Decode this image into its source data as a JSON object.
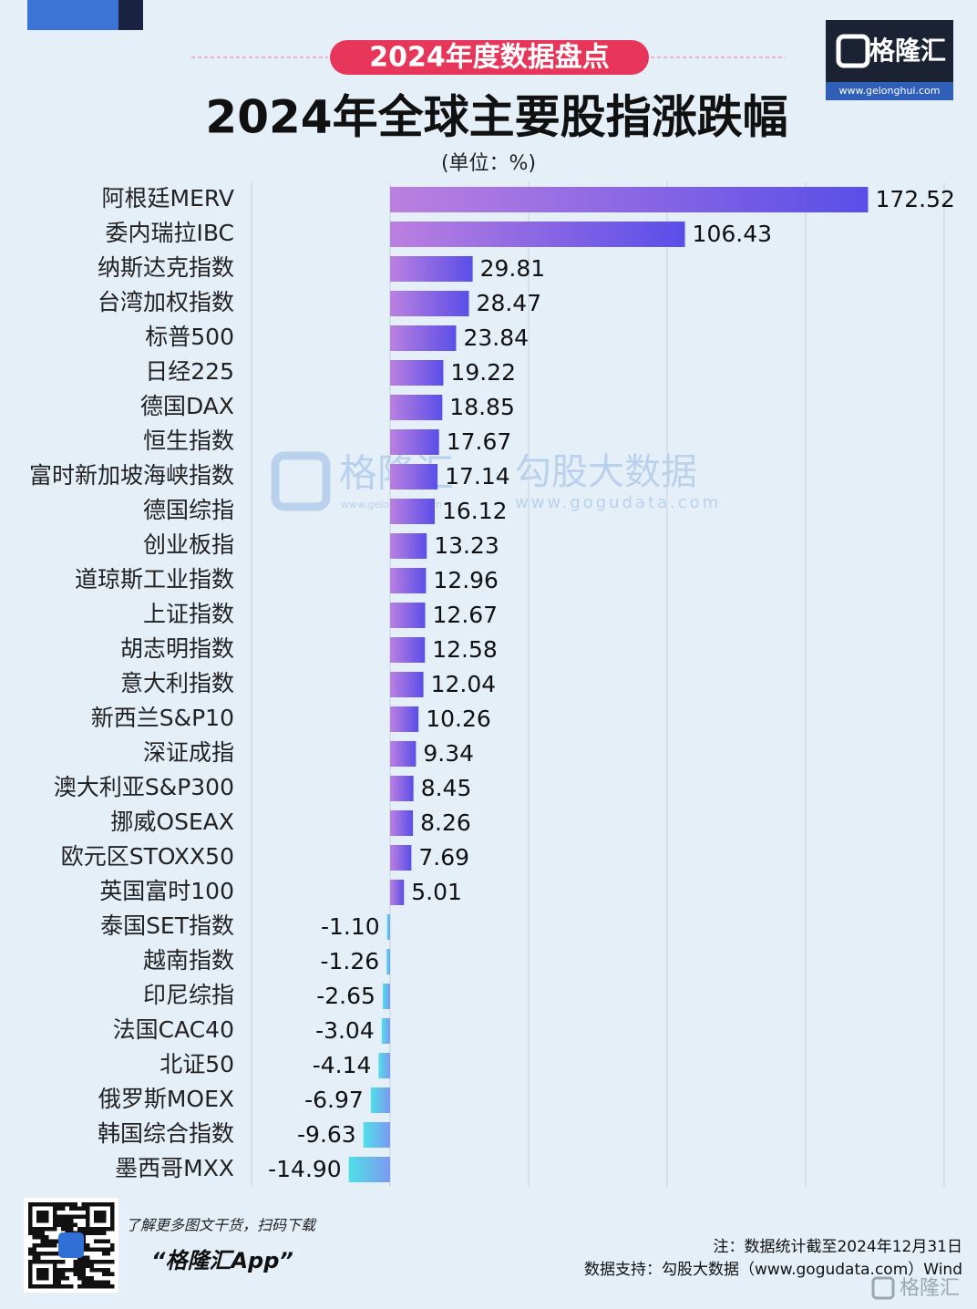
{
  "header": {
    "badge": "2024年度数据盘点",
    "logo": "格隆汇",
    "logo_url": "www.gelonghui.com"
  },
  "chart_data": {
    "type": "barh",
    "title": "2024年全球主要股指涨跌幅",
    "unit": "(单位：%)",
    "categories": [
      "阿根廷MERV",
      "委内瑞拉IBC",
      "纳斯达克指数",
      "台湾加权指数",
      "标普500",
      "日经225",
      "德国DAX",
      "恒生指数",
      "富时新加坡海峡指数",
      "德国综指",
      "创业板指",
      "道琼斯工业指数",
      "上证指数",
      "胡志明指数",
      "意大利指数",
      "新西兰S&P10",
      "深证成指",
      "澳大利亚S&P300",
      "挪威OSEAX",
      "欧元区STOXX50",
      "英国富时100",
      "泰国SET指数",
      "越南指数",
      "印尼综指",
      "法国CAC40",
      "北证50",
      "俄罗斯MOEX",
      "韩国综合指数",
      "墨西哥MXX"
    ],
    "values": [
      172.52,
      106.43,
      29.81,
      28.47,
      23.84,
      19.22,
      18.85,
      17.67,
      17.14,
      16.12,
      13.23,
      12.96,
      12.67,
      12.58,
      12.04,
      10.26,
      9.34,
      8.45,
      8.26,
      7.69,
      5.01,
      -1.1,
      -1.26,
      -2.65,
      -3.04,
      -4.14,
      -6.97,
      -9.63,
      -14.9
    ],
    "value_labels": [
      "172.52",
      "106.43",
      "29.81",
      "28.47",
      "23.84",
      "19.22",
      "18.85",
      "17.67",
      "17.14",
      "16.12",
      "13.23",
      "12.96",
      "12.67",
      "12.58",
      "12.04",
      "10.26",
      "9.34",
      "8.45",
      "8.26",
      "7.69",
      "5.01",
      "-1.10",
      "-1.26",
      "-2.65",
      "-3.04",
      "-4.14",
      "-6.97",
      "-9.63",
      "-14.90"
    ],
    "colors": {
      "positive": [
        "#bb80e0",
        "#5a4ee8"
      ],
      "negative": [
        "#4ee0e8",
        "#7d98f0"
      ]
    },
    "xlim": [
      -50,
      200
    ],
    "xticks": [
      -50,
      0,
      50,
      100,
      150,
      200
    ],
    "grid": true
  },
  "watermark": {
    "brand": "格隆汇",
    "brand_url": "www.gelonghui.com",
    "partner": "勾股大数据",
    "partner_url": "www.gogudata.com"
  },
  "footer": {
    "promo": "了解更多图文干货，扫码下载",
    "app": "“格隆汇App”",
    "note": "注：数据统计截至2024年12月31日",
    "source": "数据支持：勾股大数据（www.gogudata.com）Wind",
    "logo": "格隆汇"
  }
}
